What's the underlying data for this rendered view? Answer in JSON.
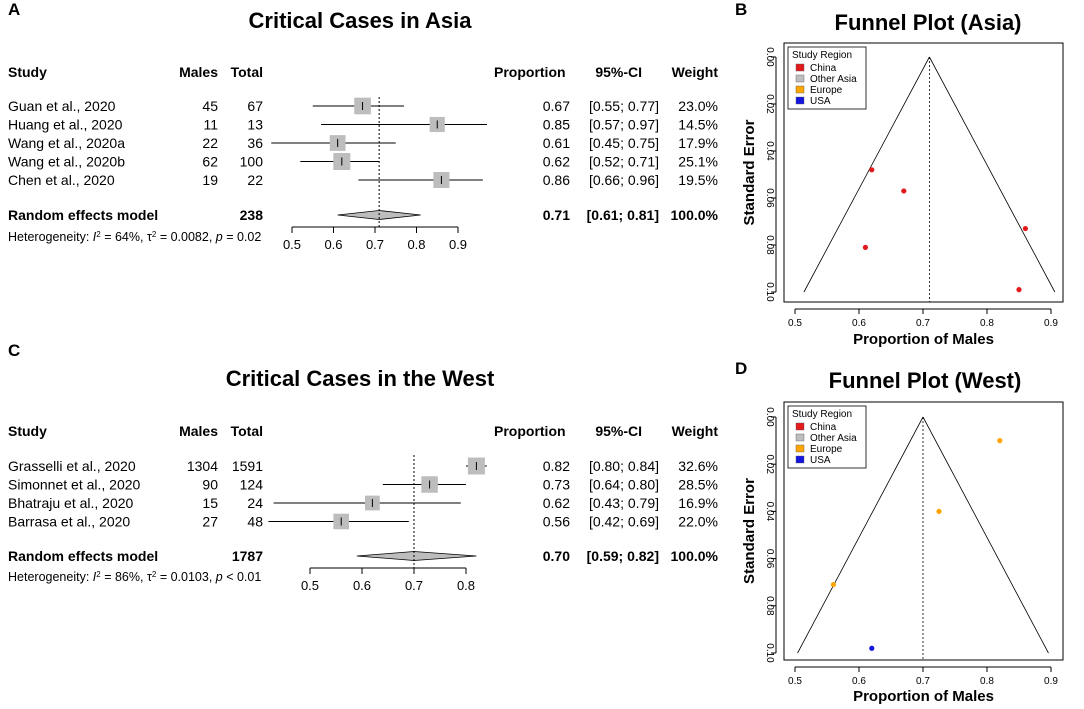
{
  "panel_letters": [
    "A",
    "B",
    "C",
    "D"
  ],
  "headers": {
    "study": "Study",
    "males": "Males",
    "total": "Total",
    "proportion": "Proportion",
    "ci": "95%-CI",
    "weight": "Weight"
  },
  "chart_data": [
    {
      "type": "forest",
      "panel": "A",
      "title": "Critical Cases in Asia",
      "studies": [
        {
          "study": "Guan et al., 2020",
          "males": "45",
          "total": "67",
          "proportion": 0.67,
          "lo": 0.55,
          "hi": 0.77,
          "prop_text": "0.67",
          "ci_text": "[0.55; 0.77]",
          "weight": "23.0%"
        },
        {
          "study": "Huang et al., 2020",
          "males": "11",
          "total": "13",
          "proportion": 0.85,
          "lo": 0.57,
          "hi": 0.97,
          "prop_text": "0.85",
          "ci_text": "[0.57; 0.97]",
          "weight": "14.5%"
        },
        {
          "study": "Wang et al., 2020a",
          "males": "22",
          "total": "36",
          "proportion": 0.61,
          "lo": 0.45,
          "hi": 0.75,
          "prop_text": "0.61",
          "ci_text": "[0.45; 0.75]",
          "weight": "17.9%"
        },
        {
          "study": "Wang et al., 2020b",
          "males": "62",
          "total": "100",
          "proportion": 0.62,
          "lo": 0.52,
          "hi": 0.71,
          "prop_text": "0.62",
          "ci_text": "[0.52; 0.71]",
          "weight": "25.1%"
        },
        {
          "study": "Chen et al., 2020",
          "males": "19",
          "total": "22",
          "proportion": 0.86,
          "lo": 0.66,
          "hi": 0.96,
          "prop_text": "0.86",
          "ci_text": "[0.66; 0.96]",
          "weight": "19.5%"
        }
      ],
      "model": {
        "label": "Random effects model",
        "total": "238",
        "proportion": 0.71,
        "lo": 0.61,
        "hi": 0.81,
        "prop_text": "0.71",
        "ci_text": "[0.61; 0.81]",
        "weight": "100.0%"
      },
      "heterogeneity": {
        "prefix": "Heterogeneity: ",
        "i2_symbol": "I",
        "i2_value": " = 64%, ",
        "tau_symbol": "τ",
        "tau_value": " = 0.0082, ",
        "p_symbol": "p",
        "p_value": " = 0.02"
      },
      "xlim": [
        0.5,
        0.9
      ],
      "xticks": [
        0.5,
        0.6,
        0.7,
        0.8,
        0.9
      ],
      "clip_range": [
        0.45,
        0.97
      ]
    },
    {
      "type": "scatter",
      "panel": "B",
      "title": "Funnel Plot (Asia)",
      "xlabel": "Proportion of Males",
      "ylabel": "Standard Error",
      "xlim": [
        0.5,
        0.9
      ],
      "ylim": [
        0.0,
        0.1
      ],
      "xticks": [
        0.5,
        0.6,
        0.7,
        0.8,
        0.9
      ],
      "yticks": [
        0.0,
        0.02,
        0.04,
        0.06,
        0.08,
        0.1
      ],
      "ytick_labels": [
        "0.00",
        "0.02",
        "0.04",
        "0.06",
        "0.08",
        "0.10"
      ],
      "center": 0.71,
      "legend_title": "Study Region",
      "legend": [
        {
          "label": "China",
          "color": "#e31a1c"
        },
        {
          "label": "Other Asia",
          "color": "#bebebe"
        },
        {
          "label": "Europe",
          "color": "#ffa500"
        },
        {
          "label": "USA",
          "color": "#1515e0"
        }
      ],
      "points": [
        {
          "x": 0.67,
          "y": 0.057,
          "region": "China"
        },
        {
          "x": 0.62,
          "y": 0.048,
          "region": "China"
        },
        {
          "x": 0.61,
          "y": 0.081,
          "region": "China"
        },
        {
          "x": 0.86,
          "y": 0.073,
          "region": "China"
        },
        {
          "x": 0.85,
          "y": 0.099,
          "region": "China"
        }
      ]
    },
    {
      "type": "forest",
      "panel": "C",
      "title": "Critical Cases in the West",
      "studies": [
        {
          "study": "Grasselli et al., 2020",
          "males": "1304",
          "total": "1591",
          "proportion": 0.82,
          "lo": 0.8,
          "hi": 0.84,
          "prop_text": "0.82",
          "ci_text": "[0.80; 0.84]",
          "weight": "32.6%"
        },
        {
          "study": "Simonnet et al., 2020",
          "males": "90",
          "total": "124",
          "proportion": 0.73,
          "lo": 0.64,
          "hi": 0.8,
          "prop_text": "0.73",
          "ci_text": "[0.64; 0.80]",
          "weight": "28.5%"
        },
        {
          "study": "Bhatraju et al., 2020",
          "males": "15",
          "total": "24",
          "proportion": 0.62,
          "lo": 0.43,
          "hi": 0.79,
          "prop_text": "0.62",
          "ci_text": "[0.43; 0.79]",
          "weight": "16.9%"
        },
        {
          "study": "Barrasa et al., 2020",
          "males": "27",
          "total": "48",
          "proportion": 0.56,
          "lo": 0.42,
          "hi": 0.69,
          "prop_text": "0.56",
          "ci_text": "[0.42; 0.69]",
          "weight": "22.0%"
        }
      ],
      "model": {
        "label": "Random effects model",
        "total": "1787",
        "proportion": 0.7,
        "lo": 0.59,
        "hi": 0.82,
        "prop_text": "0.70",
        "ci_text": "[0.59; 0.82]",
        "weight": "100.0%"
      },
      "heterogeneity": {
        "prefix": "Heterogeneity: ",
        "i2_symbol": "I",
        "i2_value": " = 86%, ",
        "tau_symbol": "τ",
        "tau_value": " = 0.0103, ",
        "p_symbol": "p",
        "p_value": " < 0.01"
      },
      "xlim": [
        0.5,
        0.8
      ],
      "xticks": [
        0.5,
        0.6,
        0.7,
        0.8
      ],
      "clip_range": [
        0.42,
        0.84
      ]
    },
    {
      "type": "scatter",
      "panel": "D",
      "title": "Funnel Plot (West)",
      "xlabel": "Proportion of Males",
      "ylabel": "Standard Error",
      "xlim": [
        0.5,
        0.9
      ],
      "ylim": [
        0.0,
        0.1
      ],
      "xticks": [
        0.5,
        0.6,
        0.7,
        0.8,
        0.9
      ],
      "yticks": [
        0.0,
        0.02,
        0.04,
        0.06,
        0.08,
        0.1
      ],
      "ytick_labels": [
        "0.00",
        "0.02",
        "0.04",
        "0.06",
        "0.08",
        "0.10"
      ],
      "center": 0.7,
      "legend_title": "Study Region",
      "legend": [
        {
          "label": "China",
          "color": "#e31a1c"
        },
        {
          "label": "Other Asia",
          "color": "#bebebe"
        },
        {
          "label": "Europe",
          "color": "#ffa500"
        },
        {
          "label": "USA",
          "color": "#1515e0"
        }
      ],
      "points": [
        {
          "x": 0.82,
          "y": 0.01,
          "region": "Europe"
        },
        {
          "x": 0.725,
          "y": 0.04,
          "region": "Europe"
        },
        {
          "x": 0.56,
          "y": 0.071,
          "region": "Europe"
        },
        {
          "x": 0.62,
          "y": 0.098,
          "region": "USA"
        }
      ]
    }
  ]
}
